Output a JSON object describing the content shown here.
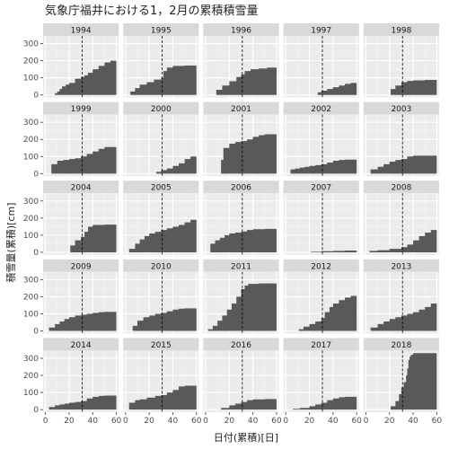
{
  "chart_data": {
    "type": "area",
    "title": "気象庁福井における1，2月の累積積雪量",
    "xlabel": "日付(累積)[日]",
    "ylabel": "積雪量(累積)[cm]",
    "x_ticks": [
      0,
      20,
      40,
      60
    ],
    "y_ticks": [
      0,
      100,
      200,
      300
    ],
    "xlim": [
      -2,
      62
    ],
    "ylim": [
      -15,
      345
    ],
    "reference_line_x": 31,
    "facets": [
      {
        "year": "1994",
        "points": [
          [
            0,
            0
          ],
          [
            7,
            0
          ],
          [
            8,
            10
          ],
          [
            10,
            20
          ],
          [
            12,
            35
          ],
          [
            14,
            50
          ],
          [
            17,
            60
          ],
          [
            20,
            70
          ],
          [
            25,
            95
          ],
          [
            30,
            105
          ],
          [
            33,
            115
          ],
          [
            36,
            130
          ],
          [
            40,
            150
          ],
          [
            45,
            170
          ],
          [
            50,
            190
          ],
          [
            55,
            200
          ],
          [
            60,
            205
          ]
        ]
      },
      {
        "year": "1995",
        "points": [
          [
            0,
            0
          ],
          [
            3,
            0
          ],
          [
            4,
            20
          ],
          [
            8,
            40
          ],
          [
            12,
            60
          ],
          [
            18,
            75
          ],
          [
            24,
            90
          ],
          [
            30,
            100
          ],
          [
            32,
            140
          ],
          [
            35,
            160
          ],
          [
            40,
            170
          ],
          [
            50,
            172
          ],
          [
            60,
            175
          ]
        ]
      },
      {
        "year": "1996",
        "points": [
          [
            0,
            0
          ],
          [
            8,
            0
          ],
          [
            9,
            30
          ],
          [
            14,
            55
          ],
          [
            20,
            80
          ],
          [
            26,
            105
          ],
          [
            30,
            120
          ],
          [
            33,
            140
          ],
          [
            38,
            150
          ],
          [
            45,
            155
          ],
          [
            52,
            160
          ],
          [
            60,
            162
          ]
        ]
      },
      {
        "year": "1997",
        "points": [
          [
            0,
            0
          ],
          [
            26,
            0
          ],
          [
            27,
            15
          ],
          [
            30,
            25
          ],
          [
            35,
            35
          ],
          [
            40,
            45
          ],
          [
            45,
            55
          ],
          [
            50,
            65
          ],
          [
            55,
            70
          ],
          [
            60,
            72
          ]
        ]
      },
      {
        "year": "1998",
        "points": [
          [
            0,
            0
          ],
          [
            20,
            0
          ],
          [
            21,
            35
          ],
          [
            25,
            55
          ],
          [
            30,
            75
          ],
          [
            35,
            82
          ],
          [
            40,
            85
          ],
          [
            50,
            88
          ],
          [
            60,
            90
          ]
        ]
      },
      {
        "year": "1999",
        "points": [
          [
            0,
            0
          ],
          [
            4,
            0
          ],
          [
            5,
            55
          ],
          [
            10,
            75
          ],
          [
            15,
            80
          ],
          [
            20,
            85
          ],
          [
            25,
            90
          ],
          [
            30,
            100
          ],
          [
            35,
            115
          ],
          [
            40,
            130
          ],
          [
            45,
            145
          ],
          [
            50,
            155
          ],
          [
            60,
            160
          ]
        ]
      },
      {
        "year": "2000",
        "points": [
          [
            0,
            0
          ],
          [
            25,
            0
          ],
          [
            26,
            10
          ],
          [
            30,
            20
          ],
          [
            35,
            30
          ],
          [
            40,
            45
          ],
          [
            45,
            60
          ],
          [
            50,
            85
          ],
          [
            55,
            100
          ],
          [
            60,
            118
          ]
        ]
      },
      {
        "year": "2001",
        "points": [
          [
            0,
            0
          ],
          [
            12,
            0
          ],
          [
            13,
            80
          ],
          [
            15,
            150
          ],
          [
            20,
            175
          ],
          [
            25,
            185
          ],
          [
            30,
            190
          ],
          [
            35,
            200
          ],
          [
            40,
            215
          ],
          [
            45,
            225
          ],
          [
            50,
            230
          ],
          [
            60,
            232
          ]
        ]
      },
      {
        "year": "2002",
        "points": [
          [
            0,
            0
          ],
          [
            3,
            0
          ],
          [
            4,
            25
          ],
          [
            8,
            30
          ],
          [
            12,
            35
          ],
          [
            16,
            40
          ],
          [
            20,
            45
          ],
          [
            25,
            50
          ],
          [
            30,
            55
          ],
          [
            35,
            65
          ],
          [
            40,
            75
          ],
          [
            45,
            80
          ],
          [
            50,
            82
          ],
          [
            60,
            85
          ]
        ]
      },
      {
        "year": "2003",
        "points": [
          [
            0,
            0
          ],
          [
            3,
            0
          ],
          [
            4,
            25
          ],
          [
            10,
            40
          ],
          [
            15,
            55
          ],
          [
            20,
            70
          ],
          [
            25,
            80
          ],
          [
            30,
            85
          ],
          [
            35,
            100
          ],
          [
            40,
            105
          ],
          [
            50,
            105
          ],
          [
            60,
            105
          ]
        ]
      },
      {
        "year": "2004",
        "points": [
          [
            0,
            0
          ],
          [
            20,
            0
          ],
          [
            21,
            40
          ],
          [
            25,
            70
          ],
          [
            30,
            90
          ],
          [
            33,
            120
          ],
          [
            36,
            150
          ],
          [
            40,
            160
          ],
          [
            50,
            162
          ],
          [
            60,
            162
          ]
        ]
      },
      {
        "year": "2005",
        "points": [
          [
            0,
            0
          ],
          [
            2,
            0
          ],
          [
            3,
            20
          ],
          [
            8,
            50
          ],
          [
            12,
            75
          ],
          [
            16,
            95
          ],
          [
            20,
            110
          ],
          [
            25,
            120
          ],
          [
            30,
            130
          ],
          [
            35,
            140
          ],
          [
            40,
            150
          ],
          [
            45,
            160
          ],
          [
            50,
            175
          ],
          [
            55,
            190
          ],
          [
            60,
            210
          ]
        ]
      },
      {
        "year": "2006",
        "points": [
          [
            0,
            0
          ],
          [
            3,
            0
          ],
          [
            4,
            50
          ],
          [
            8,
            70
          ],
          [
            12,
            85
          ],
          [
            16,
            100
          ],
          [
            20,
            110
          ],
          [
            25,
            115
          ],
          [
            30,
            122
          ],
          [
            35,
            130
          ],
          [
            40,
            135
          ],
          [
            50,
            137
          ],
          [
            60,
            138
          ]
        ]
      },
      {
        "year": "2007",
        "points": [
          [
            0,
            0
          ],
          [
            20,
            0
          ],
          [
            21,
            3
          ],
          [
            30,
            6
          ],
          [
            40,
            8
          ],
          [
            50,
            10
          ],
          [
            60,
            12
          ]
        ]
      },
      {
        "year": "2008",
        "points": [
          [
            0,
            0
          ],
          [
            2,
            0
          ],
          [
            3,
            8
          ],
          [
            10,
            12
          ],
          [
            20,
            20
          ],
          [
            30,
            30
          ],
          [
            35,
            45
          ],
          [
            40,
            70
          ],
          [
            45,
            95
          ],
          [
            50,
            115
          ],
          [
            55,
            130
          ],
          [
            60,
            135
          ]
        ]
      },
      {
        "year": "2009",
        "points": [
          [
            0,
            0
          ],
          [
            2,
            0
          ],
          [
            3,
            20
          ],
          [
            8,
            40
          ],
          [
            12,
            55
          ],
          [
            16,
            70
          ],
          [
            20,
            80
          ],
          [
            25,
            90
          ],
          [
            30,
            95
          ],
          [
            35,
            100
          ],
          [
            40,
            105
          ],
          [
            45,
            110
          ],
          [
            50,
            112
          ],
          [
            60,
            113
          ]
        ]
      },
      {
        "year": "2010",
        "points": [
          [
            0,
            0
          ],
          [
            5,
            0
          ],
          [
            6,
            30
          ],
          [
            10,
            60
          ],
          [
            15,
            80
          ],
          [
            20,
            90
          ],
          [
            25,
            100
          ],
          [
            30,
            105
          ],
          [
            35,
            115
          ],
          [
            40,
            125
          ],
          [
            45,
            130
          ],
          [
            50,
            132
          ],
          [
            60,
            133
          ]
        ]
      },
      {
        "year": "2011",
        "points": [
          [
            0,
            0
          ],
          [
            1,
            0
          ],
          [
            2,
            10
          ],
          [
            6,
            30
          ],
          [
            10,
            60
          ],
          [
            14,
            90
          ],
          [
            18,
            125
          ],
          [
            22,
            160
          ],
          [
            26,
            200
          ],
          [
            30,
            245
          ],
          [
            33,
            265
          ],
          [
            36,
            275
          ],
          [
            45,
            278
          ],
          [
            60,
            280
          ]
        ]
      },
      {
        "year": "2012",
        "points": [
          [
            0,
            0
          ],
          [
            10,
            0
          ],
          [
            11,
            10
          ],
          [
            15,
            25
          ],
          [
            20,
            40
          ],
          [
            25,
            55
          ],
          [
            30,
            75
          ],
          [
            33,
            110
          ],
          [
            37,
            140
          ],
          [
            40,
            160
          ],
          [
            45,
            180
          ],
          [
            50,
            195
          ],
          [
            55,
            205
          ],
          [
            60,
            210
          ]
        ]
      },
      {
        "year": "2013",
        "points": [
          [
            0,
            0
          ],
          [
            3,
            0
          ],
          [
            4,
            20
          ],
          [
            10,
            40
          ],
          [
            15,
            55
          ],
          [
            20,
            70
          ],
          [
            25,
            80
          ],
          [
            30,
            90
          ],
          [
            35,
            100
          ],
          [
            40,
            110
          ],
          [
            45,
            125
          ],
          [
            50,
            140
          ],
          [
            55,
            160
          ],
          [
            60,
            175
          ]
        ]
      },
      {
        "year": "2014",
        "points": [
          [
            0,
            0
          ],
          [
            2,
            0
          ],
          [
            3,
            15
          ],
          [
            8,
            25
          ],
          [
            12,
            30
          ],
          [
            16,
            35
          ],
          [
            20,
            40
          ],
          [
            25,
            45
          ],
          [
            30,
            50
          ],
          [
            35,
            65
          ],
          [
            40,
            75
          ],
          [
            45,
            80
          ],
          [
            50,
            82
          ],
          [
            60,
            83
          ]
        ]
      },
      {
        "year": "2015",
        "points": [
          [
            0,
            0
          ],
          [
            2,
            0
          ],
          [
            3,
            40
          ],
          [
            8,
            55
          ],
          [
            12,
            60
          ],
          [
            18,
            70
          ],
          [
            25,
            80
          ],
          [
            30,
            85
          ],
          [
            35,
            100
          ],
          [
            40,
            115
          ],
          [
            45,
            135
          ],
          [
            50,
            140
          ],
          [
            60,
            142
          ]
        ]
      },
      {
        "year": "2016",
        "points": [
          [
            0,
            0
          ],
          [
            12,
            0
          ],
          [
            13,
            10
          ],
          [
            20,
            25
          ],
          [
            25,
            35
          ],
          [
            30,
            45
          ],
          [
            35,
            55
          ],
          [
            40,
            60
          ],
          [
            50,
            62
          ],
          [
            60,
            63
          ]
        ]
      },
      {
        "year": "2017",
        "points": [
          [
            0,
            0
          ],
          [
            5,
            0
          ],
          [
            6,
            5
          ],
          [
            12,
            10
          ],
          [
            20,
            20
          ],
          [
            25,
            30
          ],
          [
            30,
            40
          ],
          [
            35,
            55
          ],
          [
            40,
            65
          ],
          [
            45,
            72
          ],
          [
            50,
            75
          ],
          [
            60,
            78
          ]
        ]
      },
      {
        "year": "2018",
        "points": [
          [
            0,
            0
          ],
          [
            20,
            0
          ],
          [
            21,
            20
          ],
          [
            25,
            50
          ],
          [
            28,
            90
          ],
          [
            30,
            130
          ],
          [
            32,
            160
          ],
          [
            34,
            200
          ],
          [
            35,
            240
          ],
          [
            36,
            290
          ],
          [
            37,
            310
          ],
          [
            38,
            320
          ],
          [
            40,
            330
          ],
          [
            60,
            335
          ]
        ]
      }
    ]
  }
}
